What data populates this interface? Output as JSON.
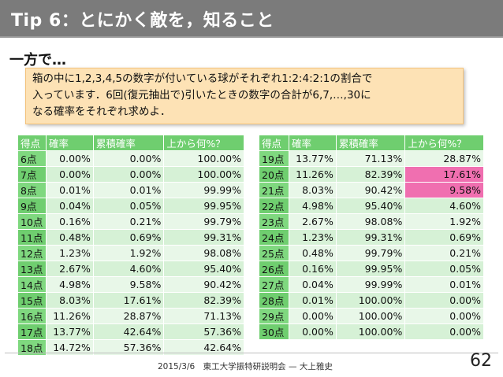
{
  "slide": {
    "title": "Tip 6：とにかく敵を，知ること",
    "subtitle": "一方で…",
    "problem": "箱の中に1,2,3,4,5の数字が付いている球がそれぞれ1:2:4:2:1の割合で\n入っています．6回(復元抽出で)引いたときの数字の合計が6,7,…,30に\nなる確率をそれぞれ求めよ．",
    "footer": "2015/3/6　東工大学振特研説明会 — 大上雅史",
    "page_number": "62"
  },
  "table": {
    "headers": [
      "得点",
      "確率",
      "累積確率",
      "上から何%？"
    ],
    "highlight_color": "#f06fb0",
    "left_rows": [
      [
        "6点",
        "0.00%",
        "0.00%",
        "100.00%"
      ],
      [
        "7点",
        "0.00%",
        "0.00%",
        "100.00%"
      ],
      [
        "8点",
        "0.01%",
        "0.01%",
        "99.99%"
      ],
      [
        "9点",
        "0.04%",
        "0.05%",
        "99.95%"
      ],
      [
        "10点",
        "0.16%",
        "0.21%",
        "99.79%"
      ],
      [
        "11点",
        "0.48%",
        "0.69%",
        "99.31%"
      ],
      [
        "12点",
        "1.23%",
        "1.92%",
        "98.08%"
      ],
      [
        "13点",
        "2.67%",
        "4.60%",
        "95.40%"
      ],
      [
        "14点",
        "4.98%",
        "9.58%",
        "90.42%"
      ],
      [
        "15点",
        "8.03%",
        "17.61%",
        "82.39%"
      ],
      [
        "16点",
        "11.26%",
        "28.87%",
        "71.13%"
      ],
      [
        "17点",
        "13.77%",
        "42.64%",
        "57.36%"
      ],
      [
        "18点",
        "14.72%",
        "57.36%",
        "42.64%"
      ]
    ],
    "right_rows": [
      [
        "19点",
        "13.77%",
        "71.13%",
        "28.87%"
      ],
      [
        "20点",
        "11.26%",
        "82.39%",
        "17.61%"
      ],
      [
        "21点",
        "8.03%",
        "90.42%",
        "9.58%"
      ],
      [
        "22点",
        "4.98%",
        "95.40%",
        "4.60%"
      ],
      [
        "23点",
        "2.67%",
        "98.08%",
        "1.92%"
      ],
      [
        "24点",
        "1.23%",
        "99.31%",
        "0.69%"
      ],
      [
        "25点",
        "0.48%",
        "99.79%",
        "0.21%"
      ],
      [
        "26点",
        "0.16%",
        "99.95%",
        "0.05%"
      ],
      [
        "27点",
        "0.04%",
        "99.99%",
        "0.01%"
      ],
      [
        "28点",
        "0.01%",
        "100.00%",
        "0.00%"
      ],
      [
        "29点",
        "0.00%",
        "100.00%",
        "0.00%"
      ],
      [
        "30点",
        "0.00%",
        "100.00%",
        "0.00%"
      ]
    ],
    "highlighted_cells": [
      "20点:上から何%？",
      "21点:上から何%？"
    ]
  }
}
